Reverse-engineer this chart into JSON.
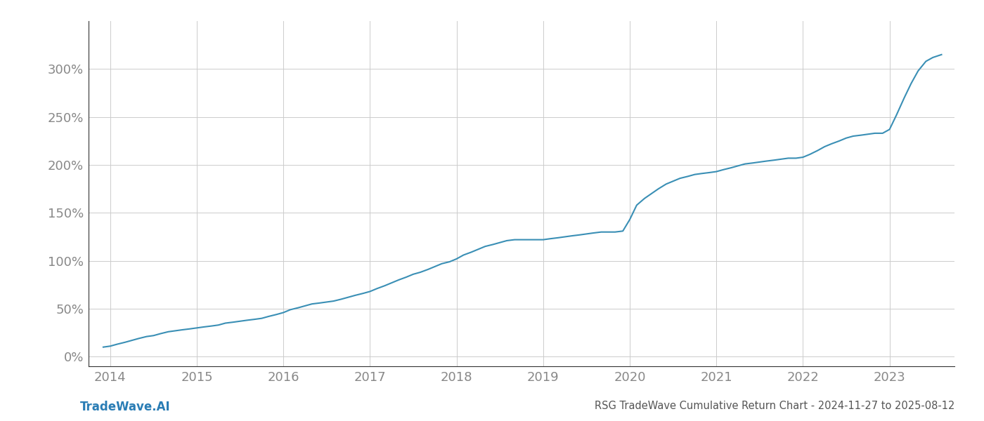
{
  "title": "RSG TradeWave Cumulative Return Chart - 2024-11-27 to 2025-08-12",
  "watermark": "TradeWave.AI",
  "line_color": "#3a8fb5",
  "background_color": "#ffffff",
  "grid_color": "#cccccc",
  "x_years": [
    2014,
    2015,
    2016,
    2017,
    2018,
    2019,
    2020,
    2021,
    2022,
    2023
  ],
  "x_values": [
    2013.92,
    2014.0,
    2014.08,
    2014.17,
    2014.25,
    2014.33,
    2014.42,
    2014.5,
    2014.58,
    2014.67,
    2014.75,
    2014.83,
    2014.92,
    2015.0,
    2015.08,
    2015.17,
    2015.25,
    2015.33,
    2015.42,
    2015.5,
    2015.58,
    2015.67,
    2015.75,
    2015.83,
    2015.92,
    2016.0,
    2016.08,
    2016.17,
    2016.25,
    2016.33,
    2016.42,
    2016.5,
    2016.58,
    2016.67,
    2016.75,
    2016.83,
    2016.92,
    2017.0,
    2017.08,
    2017.17,
    2017.25,
    2017.33,
    2017.42,
    2017.5,
    2017.58,
    2017.67,
    2017.75,
    2017.83,
    2017.92,
    2018.0,
    2018.08,
    2018.17,
    2018.25,
    2018.33,
    2018.42,
    2018.5,
    2018.58,
    2018.67,
    2018.75,
    2018.83,
    2018.92,
    2019.0,
    2019.08,
    2019.17,
    2019.25,
    2019.33,
    2019.42,
    2019.5,
    2019.58,
    2019.67,
    2019.75,
    2019.83,
    2019.92,
    2020.0,
    2020.08,
    2020.17,
    2020.25,
    2020.33,
    2020.42,
    2020.5,
    2020.58,
    2020.67,
    2020.75,
    2020.83,
    2020.92,
    2021.0,
    2021.08,
    2021.17,
    2021.25,
    2021.33,
    2021.42,
    2021.5,
    2021.58,
    2021.67,
    2021.75,
    2021.83,
    2021.92,
    2022.0,
    2022.08,
    2022.17,
    2022.25,
    2022.33,
    2022.42,
    2022.5,
    2022.58,
    2022.67,
    2022.75,
    2022.83,
    2022.92,
    2023.0,
    2023.08,
    2023.17,
    2023.25,
    2023.33,
    2023.42,
    2023.5,
    2023.6
  ],
  "y_values": [
    10,
    11,
    13,
    15,
    17,
    19,
    21,
    22,
    24,
    26,
    27,
    28,
    29,
    30,
    31,
    32,
    33,
    35,
    36,
    37,
    38,
    39,
    40,
    42,
    44,
    46,
    49,
    51,
    53,
    55,
    56,
    57,
    58,
    60,
    62,
    64,
    66,
    68,
    71,
    74,
    77,
    80,
    83,
    86,
    88,
    91,
    94,
    97,
    99,
    102,
    106,
    109,
    112,
    115,
    117,
    119,
    121,
    122,
    122,
    122,
    122,
    122,
    123,
    124,
    125,
    126,
    127,
    128,
    129,
    130,
    130,
    130,
    131,
    143,
    158,
    165,
    170,
    175,
    180,
    183,
    186,
    188,
    190,
    191,
    192,
    193,
    195,
    197,
    199,
    201,
    202,
    203,
    204,
    205,
    206,
    207,
    207,
    208,
    211,
    215,
    219,
    222,
    225,
    228,
    230,
    231,
    232,
    233,
    233,
    237,
    252,
    270,
    285,
    298,
    308,
    312,
    315
  ],
  "ylim": [
    -10,
    350
  ],
  "xlim": [
    2013.75,
    2023.75
  ],
  "yticks": [
    0,
    50,
    100,
    150,
    200,
    250,
    300
  ],
  "ytick_labels": [
    "0%",
    "50%",
    "100%",
    "150%",
    "200%",
    "250%",
    "300%"
  ],
  "line_width": 1.5,
  "title_fontsize": 10.5,
  "tick_fontsize": 13,
  "watermark_fontsize": 12,
  "title_color": "#555555",
  "tick_color": "#888888",
  "watermark_color": "#2a7db5",
  "spine_color": "#333333"
}
